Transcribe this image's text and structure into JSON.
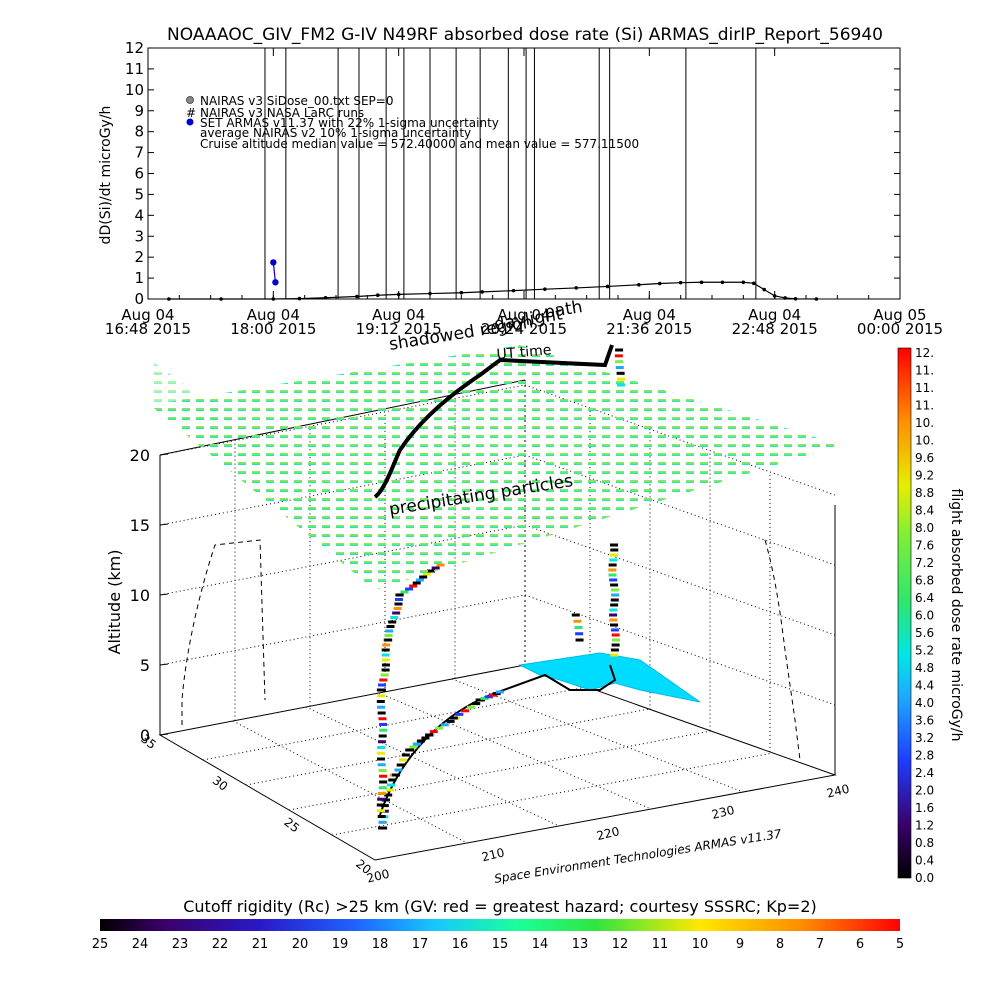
{
  "chart_data": [
    {
      "type": "line",
      "title": "NOAAAOC_GIV_FM2 G-IV   N49RF  absorbed dose rate (Si) ARMAS_dirIP_Report_56940",
      "ylabel": "dD(Si)/dt microGy/h",
      "ylim": [
        0,
        12
      ],
      "yticks": [
        "0",
        "1",
        "2",
        "3",
        "4",
        "5",
        "6",
        "7",
        "8",
        "9",
        "10",
        "11",
        "12"
      ],
      "xticks": [
        {
          "date": "Aug 04",
          "time": "16:48 2015"
        },
        {
          "date": "Aug 04",
          "time": "18:00 2015"
        },
        {
          "date": "Aug 04",
          "time": "19:12 2015"
        },
        {
          "date": "Aug 04",
          "time": "20:24 2015"
        },
        {
          "date": "Aug 04",
          "time": "21:36 2015"
        },
        {
          "date": "Aug 04",
          "time": "22:48 2015"
        },
        {
          "date": "Aug 05",
          "time": "00:00 2015"
        }
      ],
      "xlim_hours": [
        16.8,
        24.0
      ],
      "legend": [
        "NAIRAS v3 SiDose_00.txt SEP=0",
        "NAIRAS v3 NASA LaRC runs",
        "SET ARMAS v11.37 with 22% 1-sigma uncertainty",
        "average NAIRAS v2 10% 1-sigma uncertainty",
        "Cruise altitude median value = 572.40000 and mean value = 577.11500"
      ],
      "vertical_lines_hours": [
        17.92,
        18.12,
        18.62,
        18.82,
        19.08,
        19.25,
        19.5,
        19.75,
        19.98,
        20.25,
        20.42,
        20.5,
        21.12,
        21.22,
        21.95,
        22.62
      ],
      "series": [
        {
          "color": "#000000",
          "x_hours": [
            17.0,
            17.5,
            18.0,
            18.25,
            18.5,
            18.8,
            19.0,
            19.2,
            19.5,
            19.8,
            20.0,
            20.3,
            20.6,
            20.9,
            21.2,
            21.5,
            21.7,
            21.9,
            22.1,
            22.3,
            22.5,
            22.6,
            22.7,
            22.8,
            22.9,
            23.0,
            23.2
          ],
          "y": [
            0.0,
            0.0,
            0.0,
            0.02,
            0.06,
            0.12,
            0.18,
            0.22,
            0.26,
            0.3,
            0.34,
            0.4,
            0.47,
            0.53,
            0.6,
            0.68,
            0.74,
            0.78,
            0.8,
            0.8,
            0.8,
            0.75,
            0.45,
            0.15,
            0.05,
            0.01,
            0.0
          ]
        },
        {
          "color": "#0000cc",
          "x_hours": [
            18.0,
            18.02
          ],
          "y": [
            1.75,
            0.8
          ]
        }
      ]
    },
    {
      "type": "scatter",
      "zlabel": "Altitude (km)",
      "zticks": [
        "0",
        "5",
        "10",
        "15",
        "20"
      ],
      "xticks": [
        "200",
        "210",
        "220",
        "230",
        "240"
      ],
      "yticks": [
        "20",
        "25",
        "30",
        "35"
      ],
      "annotations": [
        "precipitating particles",
        "shadowed region",
        "daylight",
        "UT time",
        "path"
      ],
      "credit": "Space Environment Technologies ARMAS v11.37"
    }
  ],
  "colorbar_right": {
    "label": "flight absorbed dose rate microGy/h",
    "ticks": [
      "0.0",
      "0.4",
      "0.8",
      "1.2",
      "1.6",
      "2.0",
      "2.4",
      "2.8",
      "3.2",
      "3.6",
      "4.0",
      "4.4",
      "4.8",
      "5.2",
      "5.6",
      "6.0",
      "6.4",
      "6.8",
      "7.2",
      "7.6",
      "8.0",
      "8.4",
      "8.8",
      "9.2",
      "9.6",
      "10.",
      "10.",
      "11.",
      "11.",
      "11.",
      "12."
    ]
  },
  "colorbar_bottom": {
    "label": "Cutoff rigidity (Rc) >25 km (GV: red = greatest hazard; courtesy SSSRC; Kp=2)",
    "ticks": [
      "25",
      "24",
      "23",
      "22",
      "21",
      "20",
      "19",
      "18",
      "17",
      "16",
      "15",
      "14",
      "13",
      "12",
      "11",
      "10",
      "9",
      "8",
      "7",
      "6",
      "5"
    ]
  },
  "colors": {
    "rigidity_scale": [
      "#000000",
      "#3a006a",
      "#2a18c8",
      "#1e64ff",
      "#16c8ff",
      "#1aff9a",
      "#2fe640",
      "#ffe800",
      "#ff8a00",
      "#ff0000"
    ],
    "dose_scale": [
      "#000000",
      "#3a006a",
      "#1e3cff",
      "#1ea8ff",
      "#00e6e6",
      "#2fe66e",
      "#7aee3a",
      "#e6ee00",
      "#ff9000",
      "#ff0000"
    ],
    "sheet_top": "#9ee040",
    "sheet_bottom": "#00e6c8",
    "footprint": "#00dcff"
  }
}
